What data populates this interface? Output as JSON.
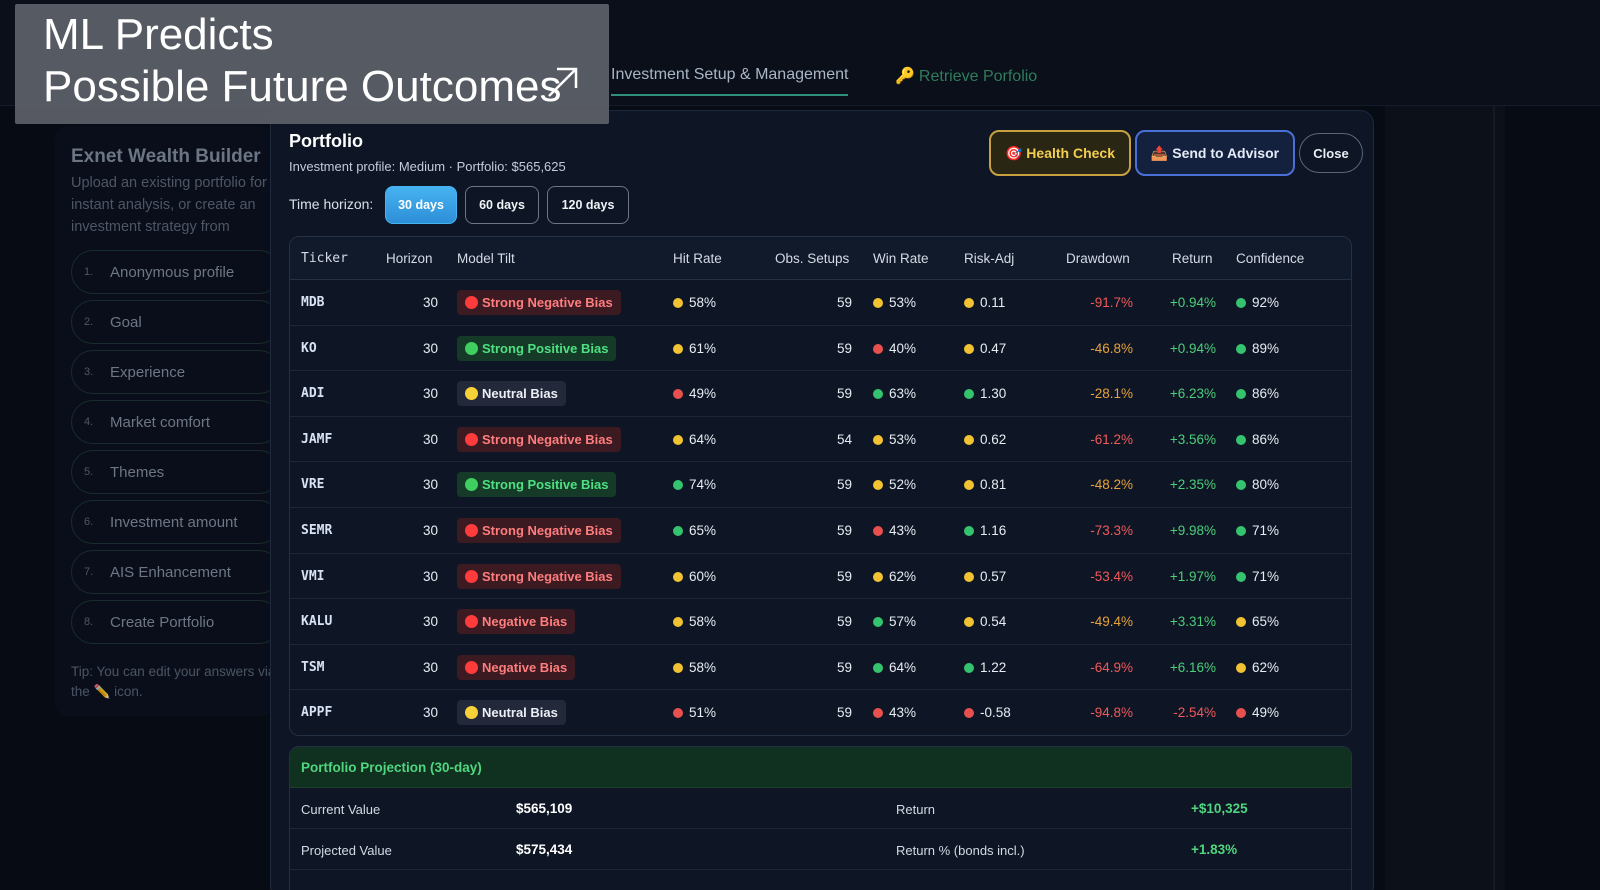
{
  "banner": {
    "line1": "ML Predicts",
    "line2": "Possible Future Outcomes"
  },
  "nav": {
    "tab_setup": "Investment Setup & Management",
    "tab_retrieve": "Retrieve Porfolio"
  },
  "sidebar": {
    "title": "Exnet Wealth Builder",
    "description": "Upload an existing portfolio for instant analysis, or create an investment strategy from scratch.",
    "steps": [
      {
        "num": "1.",
        "label": "Anonymous profile"
      },
      {
        "num": "2.",
        "label": "Goal"
      },
      {
        "num": "3.",
        "label": "Experience"
      },
      {
        "num": "4.",
        "label": "Market comfort"
      },
      {
        "num": "5.",
        "label": "Themes"
      },
      {
        "num": "6.",
        "label": "Investment amount"
      },
      {
        "num": "7.",
        "label": "AIS Enhancement"
      },
      {
        "num": "8.",
        "label": "Create Portfolio"
      }
    ],
    "tip": "Tip: You can edit your answers via the ✏️ icon."
  },
  "modal": {
    "title": "Portfolio",
    "subtitle": "Investment profile: Medium · Portfolio: $565,625",
    "health_check": "🎯 Health Check",
    "send_to_advisor": "📤 Send to Advisor",
    "close": "Close",
    "time_horizon_label": "Time horizon:",
    "horizons": [
      "30 days",
      "60 days",
      "120 days"
    ],
    "selected_horizon": "30 days"
  },
  "table": {
    "headers": {
      "ticker": "Ticker",
      "horizon": "Horizon",
      "tilt": "Model Tilt",
      "hit": "Hit Rate",
      "obs": "Obs. Setups",
      "win": "Win Rate",
      "risk": "Risk-Adj",
      "dd": "Drawdown",
      "ret": "Return",
      "conf": "Confidence"
    },
    "rows": [
      {
        "ticker": "MDB",
        "horizon": "30",
        "tilt": "Strong Negative Bias",
        "tilt_kind": "neg",
        "hit": "58%",
        "hit_c": "yellow",
        "obs": "59",
        "win": "53%",
        "win_c": "yellow",
        "risk": "0.11",
        "risk_c": "yellow",
        "dd": "-91.7%",
        "dd_c": "red",
        "ret": "+0.94%",
        "ret_c": "green",
        "conf": "92%",
        "conf_c": "green"
      },
      {
        "ticker": "KO",
        "horizon": "30",
        "tilt": "Strong Positive Bias",
        "tilt_kind": "pos",
        "hit": "61%",
        "hit_c": "yellow",
        "obs": "59",
        "win": "40%",
        "win_c": "red",
        "risk": "0.47",
        "risk_c": "yellow",
        "dd": "-46.8%",
        "dd_c": "orange",
        "ret": "+0.94%",
        "ret_c": "green",
        "conf": "89%",
        "conf_c": "green"
      },
      {
        "ticker": "ADI",
        "horizon": "30",
        "tilt": "Neutral Bias",
        "tilt_kind": "neu",
        "hit": "49%",
        "hit_c": "red",
        "obs": "59",
        "win": "63%",
        "win_c": "green",
        "risk": "1.30",
        "risk_c": "green",
        "dd": "-28.1%",
        "dd_c": "orange",
        "ret": "+6.23%",
        "ret_c": "green",
        "conf": "86%",
        "conf_c": "green"
      },
      {
        "ticker": "JAMF",
        "horizon": "30",
        "tilt": "Strong Negative Bias",
        "tilt_kind": "neg",
        "hit": "64%",
        "hit_c": "yellow",
        "obs": "54",
        "win": "53%",
        "win_c": "yellow",
        "risk": "0.62",
        "risk_c": "yellow",
        "dd": "-61.2%",
        "dd_c": "red",
        "ret": "+3.56%",
        "ret_c": "green",
        "conf": "86%",
        "conf_c": "green"
      },
      {
        "ticker": "VRE",
        "horizon": "30",
        "tilt": "Strong Positive Bias",
        "tilt_kind": "pos",
        "hit": "74%",
        "hit_c": "green",
        "obs": "59",
        "win": "52%",
        "win_c": "yellow",
        "risk": "0.81",
        "risk_c": "yellow",
        "dd": "-48.2%",
        "dd_c": "orange",
        "ret": "+2.35%",
        "ret_c": "green",
        "conf": "80%",
        "conf_c": "green"
      },
      {
        "ticker": "SEMR",
        "horizon": "30",
        "tilt": "Strong Negative Bias",
        "tilt_kind": "neg",
        "hit": "65%",
        "hit_c": "green",
        "obs": "59",
        "win": "43%",
        "win_c": "red",
        "risk": "1.16",
        "risk_c": "green",
        "dd": "-73.3%",
        "dd_c": "red",
        "ret": "+9.98%",
        "ret_c": "green",
        "conf": "71%",
        "conf_c": "green"
      },
      {
        "ticker": "VMI",
        "horizon": "30",
        "tilt": "Strong Negative Bias",
        "tilt_kind": "neg",
        "hit": "60%",
        "hit_c": "yellow",
        "obs": "59",
        "win": "62%",
        "win_c": "yellow",
        "risk": "0.57",
        "risk_c": "yellow",
        "dd": "-53.4%",
        "dd_c": "red",
        "ret": "+1.97%",
        "ret_c": "green",
        "conf": "71%",
        "conf_c": "green"
      },
      {
        "ticker": "KALU",
        "horizon": "30",
        "tilt": "Negative Bias",
        "tilt_kind": "neg",
        "hit": "58%",
        "hit_c": "yellow",
        "obs": "59",
        "win": "57%",
        "win_c": "green",
        "risk": "0.54",
        "risk_c": "yellow",
        "dd": "-49.4%",
        "dd_c": "orange",
        "ret": "+3.31%",
        "ret_c": "green",
        "conf": "65%",
        "conf_c": "yellow"
      },
      {
        "ticker": "TSM",
        "horizon": "30",
        "tilt": "Negative Bias",
        "tilt_kind": "neg",
        "hit": "58%",
        "hit_c": "yellow",
        "obs": "59",
        "win": "64%",
        "win_c": "green",
        "risk": "1.22",
        "risk_c": "green",
        "dd": "-64.9%",
        "dd_c": "red",
        "ret": "+6.16%",
        "ret_c": "green",
        "conf": "62%",
        "conf_c": "yellow"
      },
      {
        "ticker": "APPF",
        "horizon": "30",
        "tilt": "Neutral Bias",
        "tilt_kind": "neu",
        "hit": "51%",
        "hit_c": "red",
        "obs": "59",
        "win": "43%",
        "win_c": "red",
        "risk": "-0.58",
        "risk_c": "red",
        "dd": "-94.8%",
        "dd_c": "red",
        "ret": "-2.54%",
        "ret_c": "red",
        "conf": "49%",
        "conf_c": "red"
      }
    ]
  },
  "projection": {
    "title": "Portfolio Projection (30-day)",
    "rows": [
      {
        "label": "Current Value",
        "value": "$565,109",
        "label2": "Return",
        "value2": "+$10,325"
      },
      {
        "label": "Projected Value",
        "value": "$575,434",
        "label2": "Return % (bonds incl.)",
        "value2": "+1.83%"
      }
    ]
  }
}
